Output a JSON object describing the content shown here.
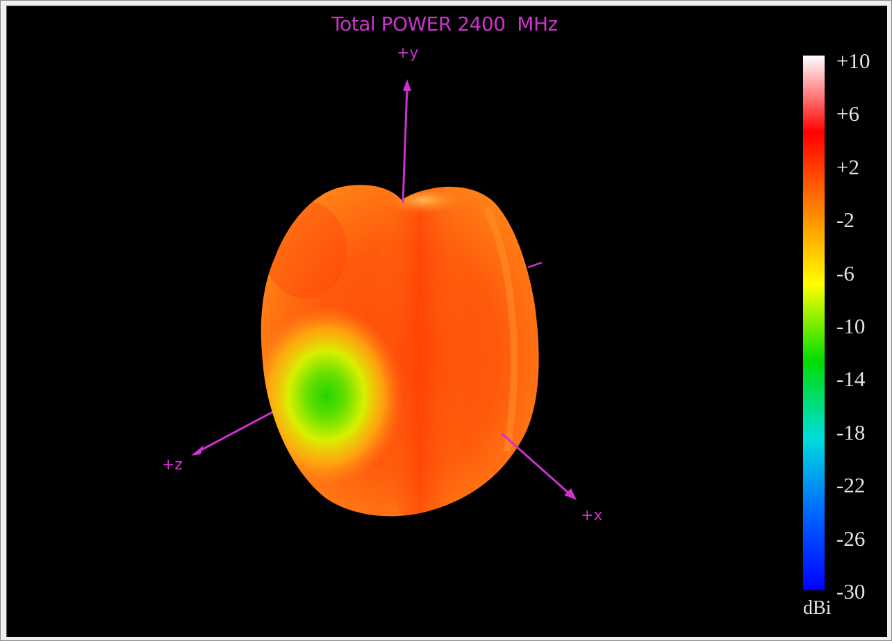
{
  "chart_data": {
    "type": "3d-radiation-pattern",
    "title": "Total POWER 2400  MHz",
    "axes": {
      "y_label": "+y",
      "z_label": "+z",
      "x_label": "+x"
    },
    "colorbar": {
      "unit": "dBi",
      "range": [
        -30,
        10
      ],
      "ticks": [
        "+10",
        "+6",
        "+2",
        "-2",
        "-6",
        "-10",
        "-14",
        "-18",
        "-22",
        "-26",
        "-30"
      ],
      "gradient": [
        "#ffffff",
        "#ff0000",
        "#ff8000",
        "#ffff00",
        "#00dd00",
        "#00dddd",
        "#0066ff",
        "#0000ff"
      ]
    },
    "pattern": {
      "dominant_color": "#ff6a10",
      "peak_dbi_approx": 2,
      "null_dbi_approx": -10,
      "null_direction": "+z"
    }
  }
}
